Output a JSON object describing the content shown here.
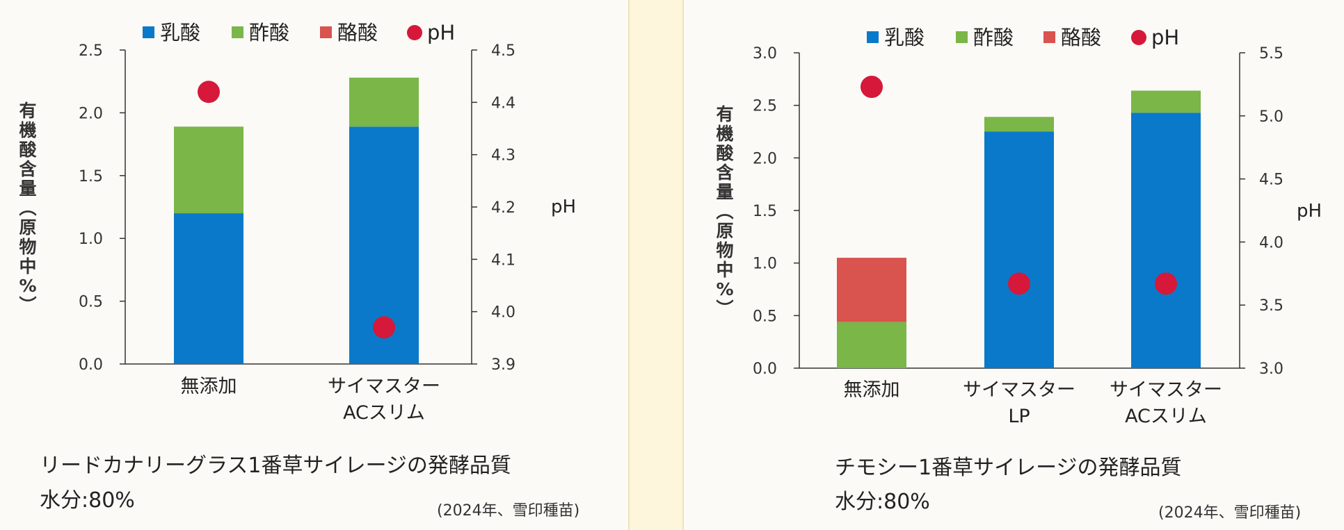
{
  "chart_data": [
    {
      "type": "bar",
      "stacked": true,
      "categories": [
        [
          "無添加"
        ],
        [
          "サイマスター",
          "ACスリム"
        ]
      ],
      "series": [
        {
          "name": "乳酸",
          "color": "#0b79c9",
          "values": [
            1.2,
            1.89
          ]
        },
        {
          "name": "酢酸",
          "color": "#7ab648",
          "values": [
            0.69,
            0.39
          ]
        },
        {
          "name": "酪酸",
          "color": "#d9534f",
          "values": [
            0,
            0
          ]
        }
      ],
      "ph_series": {
        "name": "pH",
        "color": "#d6183a",
        "values": [
          4.42,
          3.97
        ]
      },
      "ylabel": "有機酸含量(原物中%)",
      "ylim": [
        0,
        2.5
      ],
      "yticks": [
        "0.0",
        "0.5",
        "1.0",
        "1.5",
        "2.0",
        "2.5"
      ],
      "y2label": "pH",
      "y2lim": [
        3.9,
        4.5
      ],
      "y2ticks": [
        "3.9",
        "4.0",
        "4.1",
        "4.2",
        "4.3",
        "4.4",
        "4.5"
      ],
      "legend_position": "top",
      "caption": "リードカナリーグラス1番草サイレージの発酵品質",
      "moisture": "水分:80%",
      "source": "(2024年、雪印種苗)"
    },
    {
      "type": "bar",
      "stacked": true,
      "categories": [
        [
          "無添加"
        ],
        [
          "サイマスター",
          "LP"
        ],
        [
          "サイマスター",
          "ACスリム"
        ]
      ],
      "series": [
        {
          "name": "乳酸",
          "color": "#0b79c9",
          "values": [
            0,
            2.25,
            2.43
          ]
        },
        {
          "name": "酢酸",
          "color": "#7ab648",
          "values": [
            0.44,
            0.14,
            0.21
          ]
        },
        {
          "name": "酪酸",
          "color": "#d9534f",
          "values": [
            0.61,
            0,
            0
          ]
        }
      ],
      "ph_series": {
        "name": "pH",
        "color": "#d6183a",
        "values": [
          5.23,
          3.67,
          3.67
        ]
      },
      "ylabel": "有機酸含量(原物中%)",
      "ylim": [
        0,
        3.0
      ],
      "yticks": [
        "0.0",
        "0.5",
        "1.0",
        "1.5",
        "2.0",
        "2.5",
        "3.0"
      ],
      "y2label": "pH",
      "y2lim": [
        3.0,
        5.5
      ],
      "y2ticks": [
        "3.0",
        "3.5",
        "4.0",
        "4.5",
        "5.0",
        "5.5"
      ],
      "legend_position": "top",
      "caption": "チモシー1番草サイレージの発酵品質",
      "moisture": "水分:80%",
      "source": "(2024年、雪印種苗)"
    }
  ]
}
